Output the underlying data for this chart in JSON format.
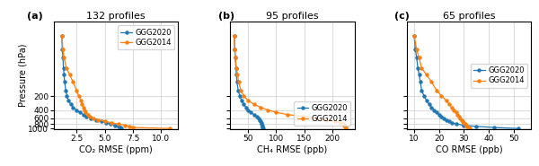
{
  "title_a": "132 profiles",
  "title_b": "95 profiles",
  "title_c": "65 profiles",
  "label_a": "(a)",
  "label_b": "(b)",
  "label_c": "(c)",
  "ylabel": "Pressure (hPa)",
  "xlabel_a": "CO₂ RMSE (ppm)",
  "xlabel_b": "CH₄ RMSE (ppb)",
  "xlabel_c": "CO RMSE (ppb)",
  "color_2020": "#1f77b4",
  "color_2014": "#ff7f0e",
  "legend_2020": "GGG2020",
  "legend_2014": "GGG2014",
  "pressure_levels": [
    10,
    20,
    30,
    50,
    70,
    100,
    150,
    200,
    250,
    300,
    350,
    400,
    450,
    500,
    550,
    600,
    650,
    700,
    750,
    800,
    850,
    900,
    950,
    1000
  ],
  "co2_2020": [
    1.2,
    1.25,
    1.3,
    1.35,
    1.4,
    1.45,
    1.55,
    1.65,
    1.8,
    2.0,
    2.2,
    2.5,
    2.8,
    3.1,
    3.4,
    3.8,
    4.2,
    4.7,
    5.1,
    5.5,
    5.9,
    6.2,
    6.4,
    6.5
  ],
  "co2_2014": [
    1.2,
    1.3,
    1.4,
    1.6,
    1.9,
    2.2,
    2.5,
    2.7,
    2.9,
    3.0,
    3.1,
    3.2,
    3.3,
    3.5,
    3.7,
    4.0,
    4.4,
    5.0,
    5.6,
    6.2,
    6.8,
    7.2,
    7.5,
    10.8
  ],
  "ch4_2020": [
    25,
    26,
    27,
    28,
    29,
    30,
    32,
    35,
    38,
    42,
    46,
    50,
    55,
    60,
    65,
    68,
    70,
    72,
    73,
    74,
    75,
    75,
    76,
    77
  ],
  "ch4_2014": [
    25,
    26,
    27,
    29,
    31,
    33,
    37,
    42,
    50,
    60,
    72,
    85,
    100,
    120,
    148,
    170,
    190,
    205,
    215,
    220,
    222,
    223,
    224,
    225
  ],
  "co_2020": [
    10,
    10.5,
    11,
    11.5,
    12,
    12.5,
    13,
    14,
    15,
    16,
    17,
    18,
    19,
    20,
    21,
    22,
    23,
    24,
    25,
    27,
    30,
    35,
    42,
    52
  ],
  "co_2014": [
    10,
    11,
    12,
    13,
    15,
    17,
    19,
    21,
    23,
    24,
    25,
    26,
    27,
    27.5,
    28,
    28.5,
    29,
    29.5,
    30,
    30.5,
    31,
    31.5,
    32,
    32.5
  ],
  "xlim_a": [
    0.5,
    11.5
  ],
  "xlim_b": [
    18,
    240
  ],
  "xlim_c": [
    7,
    57
  ],
  "xticks_a": [
    2.5,
    5.0,
    7.5,
    10.0
  ],
  "xticks_b": [
    50,
    100,
    150,
    200
  ],
  "xticks_c": [
    10,
    20,
    30,
    40,
    50
  ],
  "ylim": [
    1050,
    5
  ],
  "yticks": [
    200,
    400,
    600,
    800,
    1000
  ],
  "ytick_labels": [
    "200",
    "400",
    "600",
    "800",
    "1000"
  ]
}
